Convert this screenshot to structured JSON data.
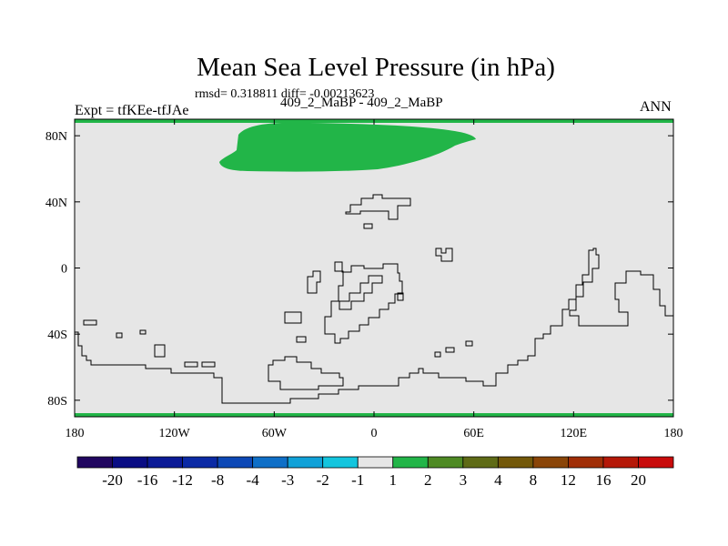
{
  "title": "Mean Sea Level Pressure (in hPa)",
  "stats": "rmsd= 0.318811 diff= -0.00213623",
  "left_label": "Expt = tfKEe-tfJAe",
  "center_label": "409_2_MaBP - 409_2_MaBP",
  "right_label": "ANN",
  "map": {
    "projection": "cylindrical equidistant",
    "lon_range": [
      -180,
      180
    ],
    "lat_range": [
      -90,
      90
    ],
    "lon_ticks": [
      {
        "value": -180,
        "label": "180"
      },
      {
        "value": -120,
        "label": "120W"
      },
      {
        "value": -60,
        "label": "60W"
      },
      {
        "value": 0,
        "label": "0"
      },
      {
        "value": 60,
        "label": "60E"
      },
      {
        "value": 120,
        "label": "120E"
      },
      {
        "value": 180,
        "label": "180"
      }
    ],
    "lat_ticks": [
      {
        "value": 80,
        "label": "80N"
      },
      {
        "value": 40,
        "label": "40N"
      },
      {
        "value": 0,
        "label": "0"
      },
      {
        "value": -40,
        "label": "40S"
      },
      {
        "value": -80,
        "label": "80S"
      }
    ],
    "background_color": "#e6e6e6",
    "feature_color": "#22b548",
    "coastline_color": "#000000"
  },
  "colorbar": {
    "colors": [
      "#210660",
      "#0a0d84",
      "#0b1a96",
      "#0b2aa5",
      "#0d48b6",
      "#0f6fc7",
      "#10a1d8",
      "#14c5de",
      "#e6e6e6",
      "#22b548",
      "#4e8a24",
      "#5f6b16",
      "#73580a",
      "#8a4508",
      "#a02e06",
      "#b51808",
      "#c90b0b"
    ],
    "labels": [
      "-20",
      "-16",
      "-12",
      "-8",
      "-4",
      "-3",
      "-2",
      "-1",
      "1",
      "2",
      "3",
      "4",
      "8",
      "12",
      "16",
      "20"
    ]
  }
}
